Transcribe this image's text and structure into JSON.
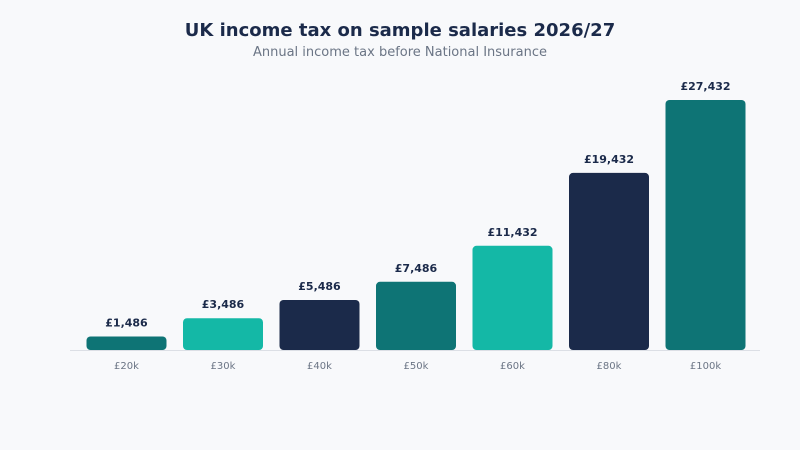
{
  "chart_data": {
    "type": "bar",
    "title": "UK income tax on sample salaries 2026/27",
    "subtitle": "Annual income tax before National Insurance",
    "xlabel": "",
    "ylabel": "",
    "grid": false,
    "legend": "none",
    "ylim": [
      0,
      27432
    ],
    "categories": [
      "£20k",
      "£30k",
      "£40k",
      "£50k",
      "£60k",
      "£80k",
      "£100k"
    ],
    "values": [
      1486,
      3486,
      5486,
      7486,
      11432,
      19432,
      27432
    ],
    "value_labels": [
      "£1,486",
      "£3,486",
      "£5,486",
      "£7,486",
      "£11,432",
      "£19,432",
      "£27,432"
    ],
    "bar_colors": [
      "#0e7475",
      "#14b8a6",
      "#1b2a4a",
      "#0e7475",
      "#14b8a6",
      "#1b2a4a",
      "#0e7475"
    ],
    "colors": {
      "baseline": "#dcdfe5",
      "title": "#1b2a4a",
      "subtitle": "#6b7585",
      "tick": "#6b7585"
    }
  }
}
